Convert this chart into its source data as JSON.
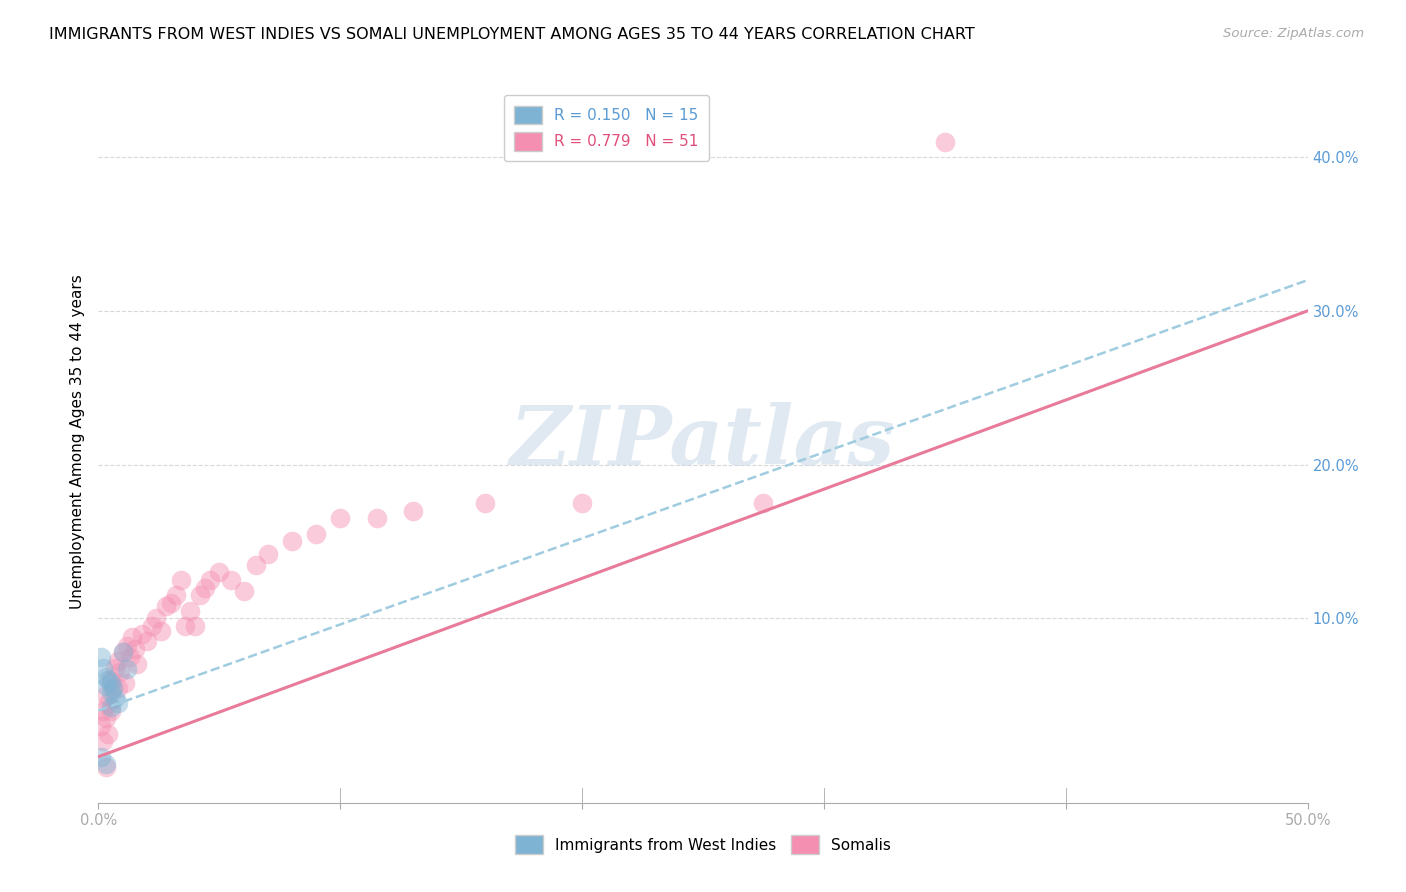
{
  "title": "IMMIGRANTS FROM WEST INDIES VS SOMALI UNEMPLOYMENT AMONG AGES 35 TO 44 YEARS CORRELATION CHART",
  "source": "Source: ZipAtlas.com",
  "ylabel": "Unemployment Among Ages 35 to 44 years",
  "xlim": [
    0.0,
    0.5
  ],
  "ylim": [
    -0.02,
    0.45
  ],
  "yticks": [
    0.0,
    0.1,
    0.2,
    0.3,
    0.4
  ],
  "yticklabels_right": [
    "",
    "10.0%",
    "20.0%",
    "30.0%",
    "40.0%"
  ],
  "xtick_left_label": "0.0%",
  "xtick_right_label": "50.0%",
  "legend_labels_bottom": [
    "Immigrants from West Indies",
    "Somalis"
  ],
  "watermark": "ZIPatlas",
  "background_color": "#ffffff",
  "grid_color": "#d8d8d8",
  "west_indies_color": "#7fb3d3",
  "somali_color": "#f48fb1",
  "wi_line_color": "#a0cce0",
  "somali_line_color": "#e87a9a",
  "dot_size": 200,
  "dot_alpha": 0.45,
  "title_fontsize": 11.5,
  "axis_label_fontsize": 11,
  "tick_fontsize": 10.5,
  "legend_fontsize": 11,
  "source_fontsize": 9.5,
  "wi_x": [
    0.001,
    0.002,
    0.003,
    0.003,
    0.004,
    0.005,
    0.005,
    0.006,
    0.007,
    0.008,
    0.01,
    0.012,
    0.001,
    0.003,
    0.005
  ],
  "wi_y": [
    0.075,
    0.068,
    0.062,
    0.056,
    0.06,
    0.058,
    0.052,
    0.055,
    0.048,
    0.045,
    0.078,
    0.067,
    0.01,
    0.005,
    0.042
  ],
  "somali_x": [
    0.001,
    0.002,
    0.002,
    0.003,
    0.003,
    0.004,
    0.004,
    0.005,
    0.005,
    0.006,
    0.007,
    0.008,
    0.008,
    0.009,
    0.01,
    0.011,
    0.012,
    0.013,
    0.014,
    0.015,
    0.016,
    0.018,
    0.02,
    0.022,
    0.024,
    0.026,
    0.028,
    0.03,
    0.032,
    0.034,
    0.036,
    0.038,
    0.04,
    0.042,
    0.044,
    0.046,
    0.05,
    0.055,
    0.06,
    0.065,
    0.07,
    0.08,
    0.09,
    0.1,
    0.115,
    0.13,
    0.16,
    0.2,
    0.275,
    0.35,
    0.003
  ],
  "somali_y": [
    0.03,
    0.04,
    0.02,
    0.035,
    0.05,
    0.045,
    0.025,
    0.06,
    0.04,
    0.055,
    0.068,
    0.072,
    0.055,
    0.065,
    0.078,
    0.058,
    0.082,
    0.075,
    0.088,
    0.08,
    0.07,
    0.09,
    0.085,
    0.095,
    0.1,
    0.092,
    0.108,
    0.11,
    0.115,
    0.125,
    0.095,
    0.105,
    0.095,
    0.115,
    0.12,
    0.125,
    0.13,
    0.125,
    0.118,
    0.135,
    0.142,
    0.15,
    0.155,
    0.165,
    0.165,
    0.17,
    0.175,
    0.175,
    0.175,
    0.41,
    0.003
  ],
  "somali_trend_x0": 0.0,
  "somali_trend_y0": 0.01,
  "somali_trend_x1": 0.5,
  "somali_trend_y1": 0.3,
  "wi_trend_x0": 0.0,
  "wi_trend_y0": 0.04,
  "wi_trend_x1": 0.5,
  "wi_trend_y1": 0.32
}
